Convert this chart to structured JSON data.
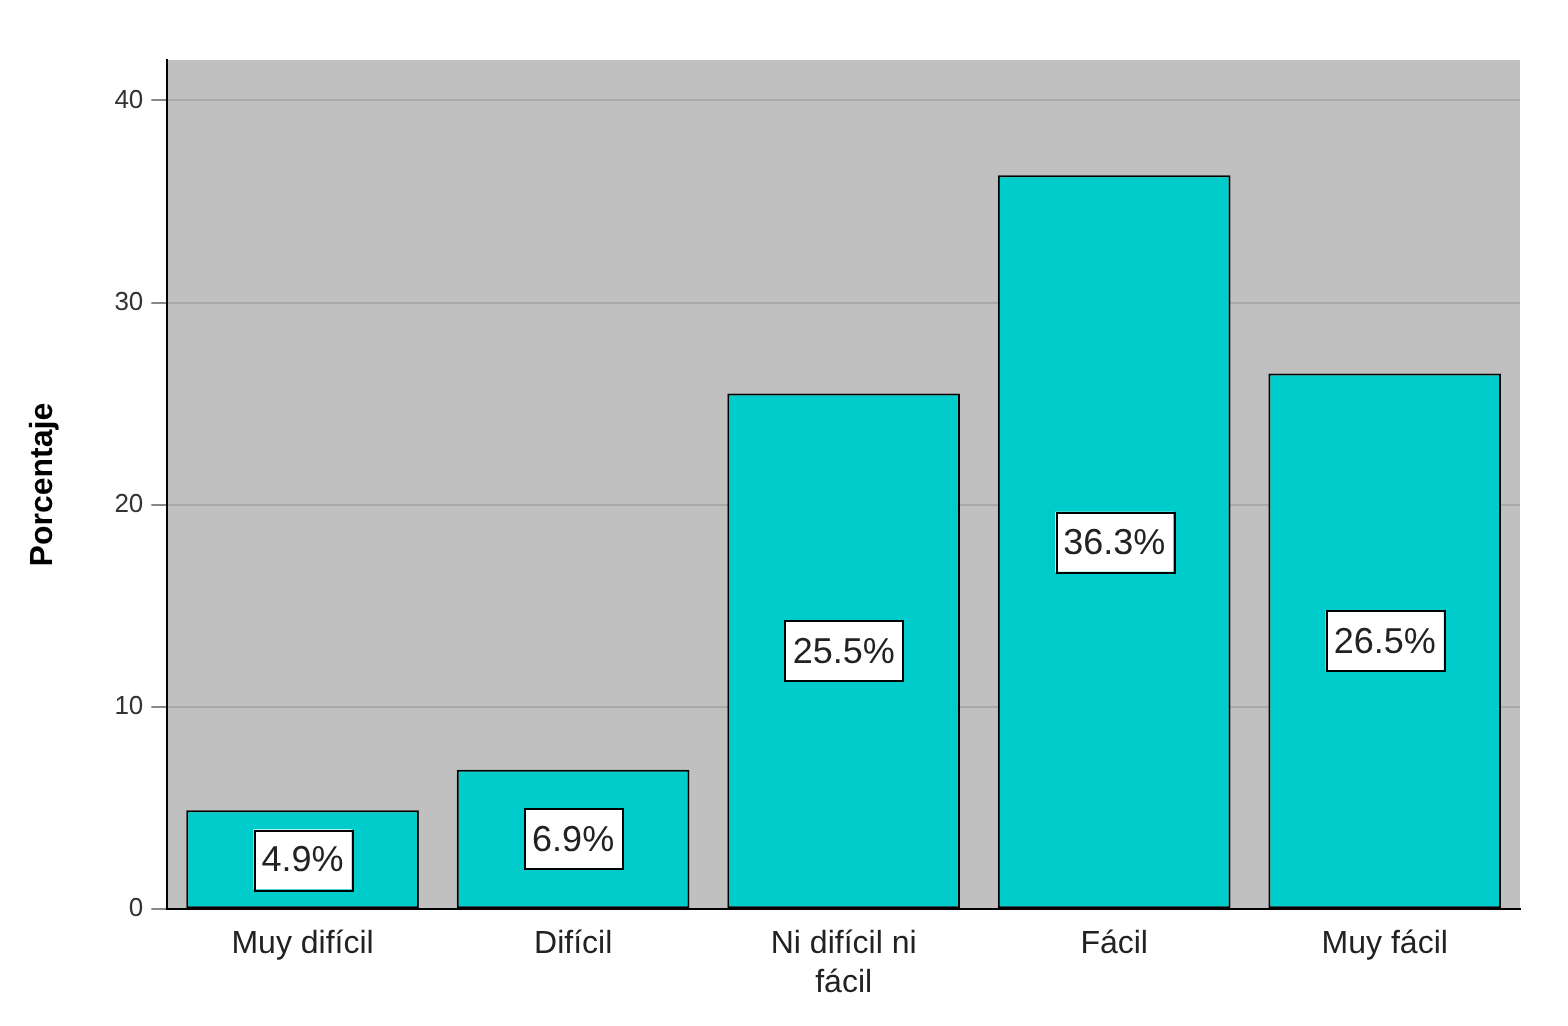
{
  "chart_data": {
    "type": "bar",
    "ylabel": "Porcentaje",
    "categories": [
      "Muy difícil",
      "Difícil",
      "Ni difícil ni fácil",
      "Fácil",
      "Muy fácil"
    ],
    "values": [
      4.9,
      6.9,
      25.5,
      36.3,
      26.5
    ],
    "value_labels": [
      "4.9%",
      "6.9%",
      "25.5%",
      "36.3%",
      "26.5%"
    ],
    "color": "#00cccc",
    "ylim": [
      0,
      42
    ],
    "yticks": [
      0,
      10,
      20,
      30,
      40
    ],
    "grid": "y"
  }
}
